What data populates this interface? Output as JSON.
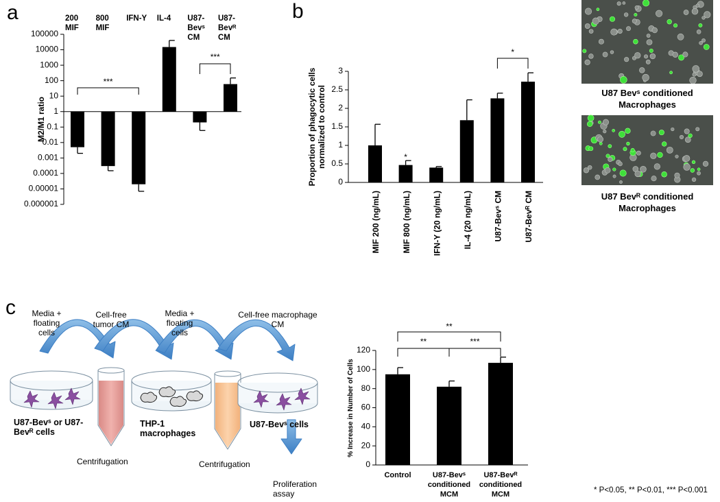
{
  "panel_labels": [
    "a",
    "b",
    "c"
  ],
  "chart_data": [
    {
      "type": "bar",
      "ylabel": "M2/M1 ratio",
      "categories": [
        "200 MIF",
        "800 MIF",
        "IFN-Y",
        "IL-4",
        "U87-Bevˢ CM",
        "U87-Bevᴿ CM"
      ],
      "values": [
        0.005,
        0.0003,
        2e-05,
        15000,
        0.2,
        60
      ],
      "errors": [
        0.003,
        0.00015,
        1.3e-05,
        25000,
        0.14,
        90
      ],
      "color": "#000000",
      "log_scale": true,
      "ylim": [
        1e-06,
        100000
      ],
      "yticks": [
        100000,
        10000,
        1000,
        100,
        10,
        1,
        0.1,
        0.01,
        0.001,
        0.0001,
        1e-05,
        1e-06
      ],
      "annotations": [
        "***",
        "***"
      ]
    },
    {
      "type": "bar",
      "ylabel": "Proportion of phagocytic cells normalized to control",
      "categories": [
        "MIF 200 (ng/mL)",
        "MIF 800 (ng/mL)",
        "IFN-Y (20 ng/mL)",
        "IL-4 (20 ng/mL)",
        "U87-Bevˢ CM",
        "U87-Bevᴿ CM"
      ],
      "values": [
        1.0,
        0.47,
        0.4,
        1.68,
        2.27,
        2.72
      ],
      "errors": [
        0.57,
        0.12,
        0.03,
        0.55,
        0.14,
        0.24
      ],
      "color": "#000000",
      "ylim": [
        0,
        3
      ],
      "yticks": [
        0,
        0.5,
        1,
        1.5,
        2,
        2.5,
        3
      ],
      "annotations": [
        "*",
        "*"
      ]
    },
    {
      "type": "bar",
      "ylabel": "% Increase in Number of Cells",
      "categories": [
        "Control",
        "U87-Bevˢ conditioned MCM",
        "U87-Bevᴿ conditioned MCM"
      ],
      "values": [
        95,
        82,
        107
      ],
      "errors": [
        7,
        6,
        6
      ],
      "color": "#000000",
      "ylim": [
        0,
        120
      ],
      "yticks": [
        0,
        20,
        40,
        60,
        80,
        100,
        120
      ],
      "annotations": [
        "**",
        "**",
        "***"
      ]
    }
  ],
  "micrographs": [
    {
      "caption": "U87 Bevˢ conditioned Macrophages"
    },
    {
      "caption": "U87 Bevᴿ conditioned Macrophages"
    }
  ],
  "diagram": {
    "labels": [
      "Media + floating cells",
      "Cell-free tumor CM",
      "Media + floating cells",
      "Cell-free macrophage CM",
      "U87-Bevˢ or U87-Bevᴿ cells",
      "THP-1 macrophages",
      "Centrifugation",
      "Centrifugation",
      "U87-Bevˢ cells",
      "Proliferation assay"
    ]
  },
  "footnote": "* P<0.05, ** P<0.01, *** P<0.001"
}
